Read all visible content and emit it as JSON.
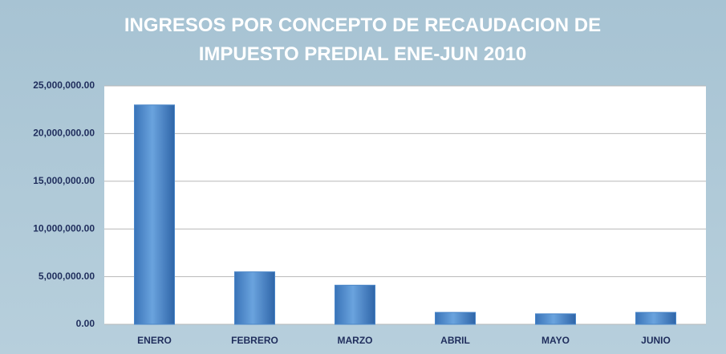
{
  "chart_data": {
    "type": "bar",
    "title": "INGRESOS POR CONCEPTO DE RECAUDACION DE IMPUESTO PREDIAL ENE-JUN 2010",
    "categories": [
      "ENERO",
      "FEBRERO",
      "MARZO",
      "ABRIL",
      "MAYO",
      "JUNIO"
    ],
    "values": [
      23000000,
      5500000,
      4100000,
      1250000,
      1100000,
      1250000
    ],
    "color": "#4a86c8",
    "ylim": [
      0,
      25000000
    ],
    "yticks": [
      {
        "value": 0,
        "label": "0.00"
      },
      {
        "value": 5000000,
        "label": "5,000,000.00"
      },
      {
        "value": 10000000,
        "label": "10,000,000.00"
      },
      {
        "value": 15000000,
        "label": "15,000,000.00"
      },
      {
        "value": 20000000,
        "label": "20,000,000.00"
      },
      {
        "value": 25000000,
        "label": "25,000,000.00"
      }
    ],
    "grid": true
  }
}
